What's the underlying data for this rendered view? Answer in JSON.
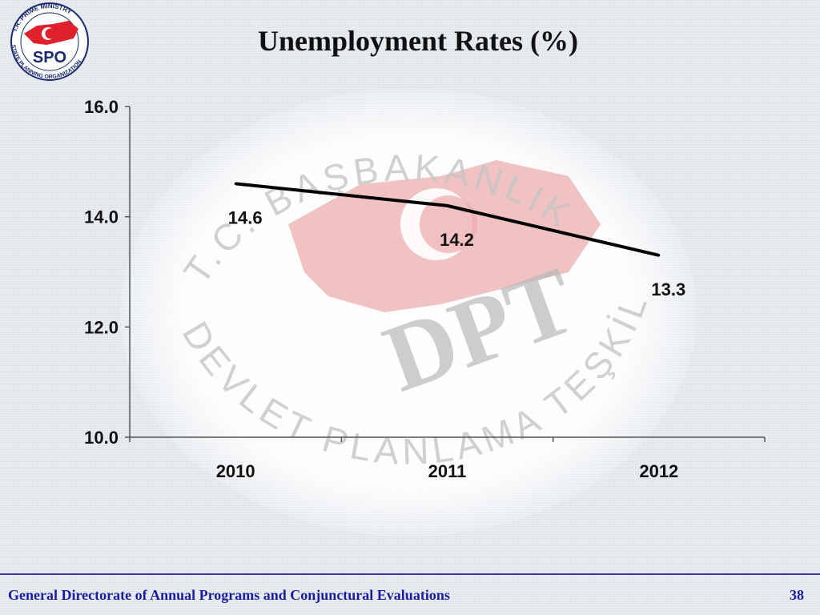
{
  "logo": {
    "ring_text_top": "T.R. PRIME MINISTRY",
    "ring_text_bottom": "STATE PLANNING ORGANIZATION",
    "abbr": "SPO",
    "colors": {
      "red": "#e0202a",
      "navy": "#1a2a6c"
    }
  },
  "watermark": {
    "ring_text_top": "T.C. BAŞBAKANLIK",
    "ring_text_bottom": "DEVLET PLANLAMA TEŞKİLATI",
    "abbr": "DPT"
  },
  "chart_data": {
    "type": "line",
    "title": "Unemployment Rates (%)",
    "categories": [
      "2010",
      "2011",
      "2012"
    ],
    "series": [
      {
        "values": [
          14.6,
          14.2,
          13.3
        ],
        "color": "#000000"
      }
    ],
    "data_labels": [
      "14.6",
      "14.2",
      "13.3"
    ],
    "y_ticks": [
      "10.0",
      "12.0",
      "14.0",
      "16.0"
    ],
    "ylim": [
      10.0,
      16.0
    ],
    "xlabel": "",
    "ylabel": "",
    "grid": false,
    "legend": "none"
  },
  "footer": {
    "text": "General Directorate of Annual Programs and Conjunctural Evaluations",
    "page": "38",
    "color": "#1a1aa0"
  }
}
